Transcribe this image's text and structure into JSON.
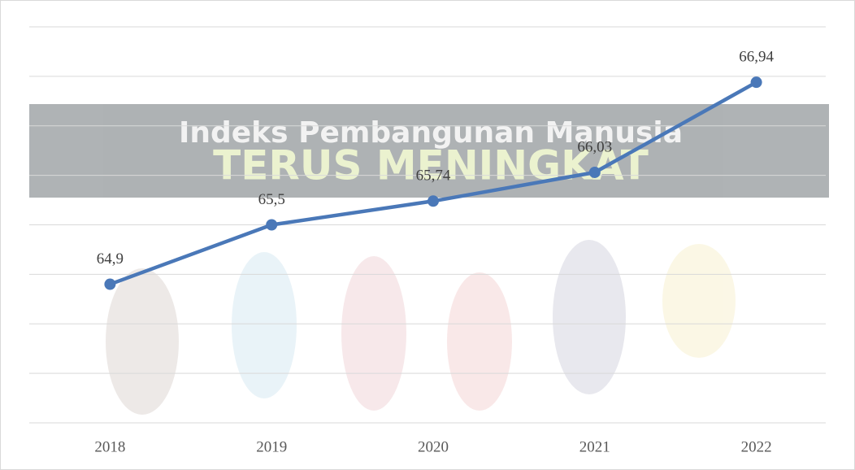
{
  "chart_data": {
    "type": "line",
    "background_text": [
      "Indeks Pembangunan Manusia",
      "TERUS MENINGKAT"
    ],
    "categories": [
      "2018",
      "2019",
      "2020",
      "2021",
      "2022"
    ],
    "series": [
      {
        "color": "#4a78b8",
        "values": [
          64.9,
          65.5,
          65.74,
          66.03,
          66.94
        ],
        "value_labels": [
          "64,9",
          "65,5",
          "65,74",
          "66,03",
          "66,94"
        ]
      }
    ],
    "ylim": [
      63.5,
      67.5
    ],
    "yticks": [
      63.5,
      64,
      64.5,
      65,
      65.5,
      66,
      66.5,
      67,
      67.5
    ],
    "show_ytick_labels": false,
    "grid": true
  }
}
